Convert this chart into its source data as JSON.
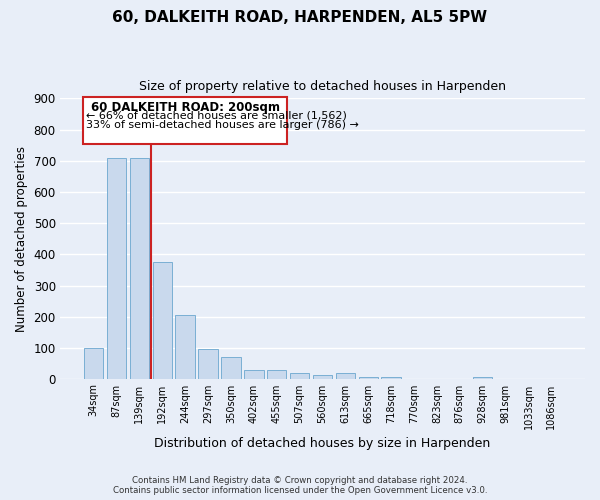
{
  "title": "60, DALKEITH ROAD, HARPENDEN, AL5 5PW",
  "subtitle": "Size of property relative to detached houses in Harpenden",
  "xlabel": "Distribution of detached houses by size in Harpenden",
  "ylabel": "Number of detached properties",
  "bar_color": "#c9d9ed",
  "bar_edge_color": "#7aafd4",
  "categories": [
    "34sqm",
    "87sqm",
    "139sqm",
    "192sqm",
    "244sqm",
    "297sqm",
    "350sqm",
    "402sqm",
    "455sqm",
    "507sqm",
    "560sqm",
    "613sqm",
    "665sqm",
    "718sqm",
    "770sqm",
    "823sqm",
    "876sqm",
    "928sqm",
    "981sqm",
    "1033sqm",
    "1086sqm"
  ],
  "values": [
    100,
    710,
    710,
    375,
    207,
    96,
    72,
    30,
    30,
    20,
    13,
    20,
    8,
    8,
    0,
    0,
    0,
    8,
    0,
    0,
    0
  ],
  "ylim": [
    0,
    900
  ],
  "yticks": [
    0,
    100,
    200,
    300,
    400,
    500,
    600,
    700,
    800,
    900
  ],
  "vline_color": "#cc2222",
  "annotation_title": "60 DALKEITH ROAD: 200sqm",
  "annotation_line1": "← 66% of detached houses are smaller (1,562)",
  "annotation_line2": "33% of semi-detached houses are larger (786) →",
  "annotation_box_color": "#ffffff",
  "annotation_box_edge": "#cc2222",
  "footer_line1": "Contains HM Land Registry data © Crown copyright and database right 2024.",
  "footer_line2": "Contains public sector information licensed under the Open Government Licence v3.0.",
  "background_color": "#e8eef8"
}
